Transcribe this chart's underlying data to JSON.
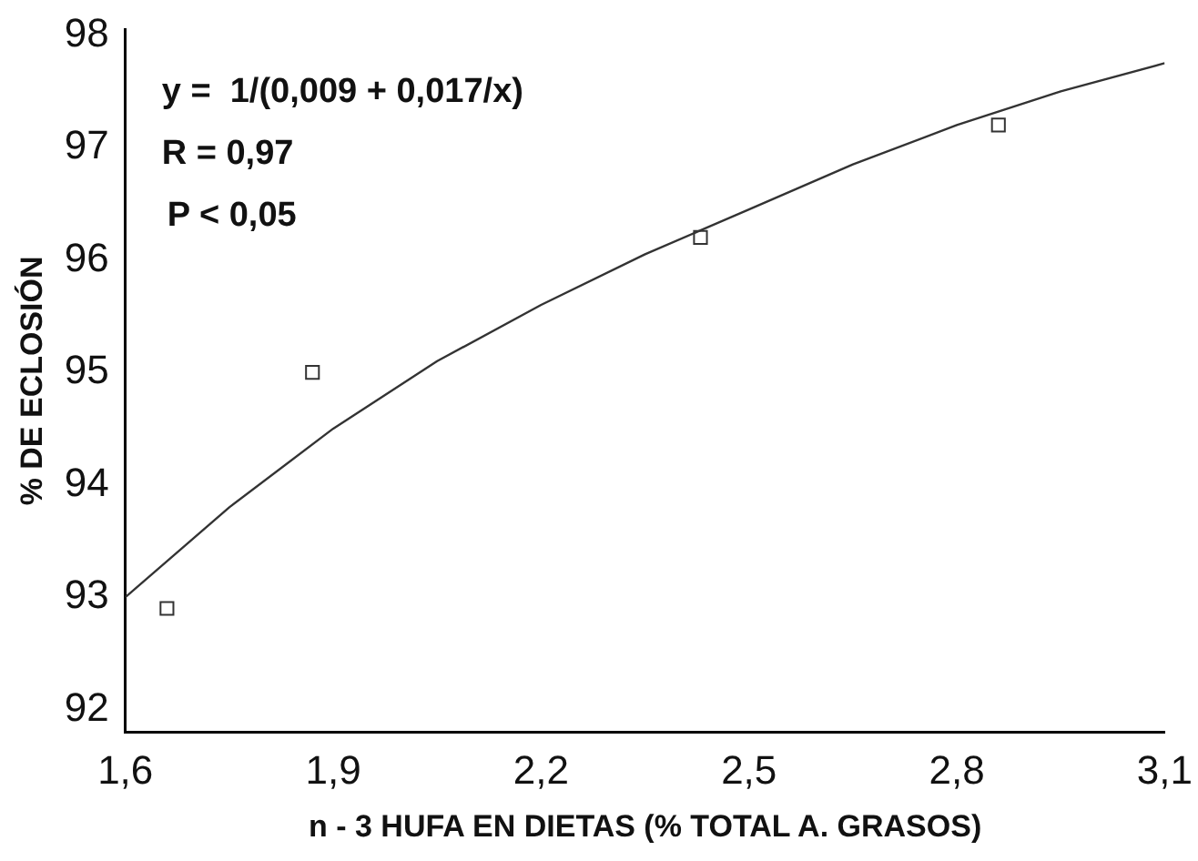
{
  "chart_data": {
    "type": "scatter",
    "xlabel": "n - 3 HUFA EN DIETAS (% TOTAL A. GRASOS)",
    "ylabel": "% DE ECLOSIÓN",
    "annotations": [
      "y =  1/(0,009 + 0,017/x)",
      "R = 0,97",
      "P < 0,05"
    ],
    "series": [
      {
        "type": "line",
        "color": "#333333",
        "marker": "none",
        "x": [
          1.6,
          1.75,
          1.9,
          2.05,
          2.2,
          2.35,
          2.5,
          2.65,
          2.8,
          2.95,
          3.1
        ],
        "values": [
          93.0,
          93.8,
          94.5,
          95.1,
          95.6,
          96.05,
          96.45,
          96.85,
          97.2,
          97.5,
          97.75
        ]
      },
      {
        "color": "#333333",
        "marker": "square",
        "x": [
          1.66,
          1.87,
          2.43,
          2.86
        ],
        "values": [
          92.9,
          95.0,
          96.2,
          97.2
        ]
      }
    ],
    "xlim": [
      1.6,
      3.1
    ],
    "xticks": [
      {
        "value": 1.6,
        "label": "1,6"
      },
      {
        "value": 1.9,
        "label": "1,9"
      },
      {
        "value": 2.2,
        "label": "2,2"
      },
      {
        "value": 2.5,
        "label": "2,5"
      },
      {
        "value": 2.8,
        "label": "2,8"
      },
      {
        "value": 3.1,
        "label": "3,1"
      }
    ],
    "ylim": [
      91.8,
      98.05
    ],
    "yticks": [
      92,
      93,
      94,
      95,
      96,
      97,
      98
    ],
    "grid": false,
    "legend": false
  }
}
